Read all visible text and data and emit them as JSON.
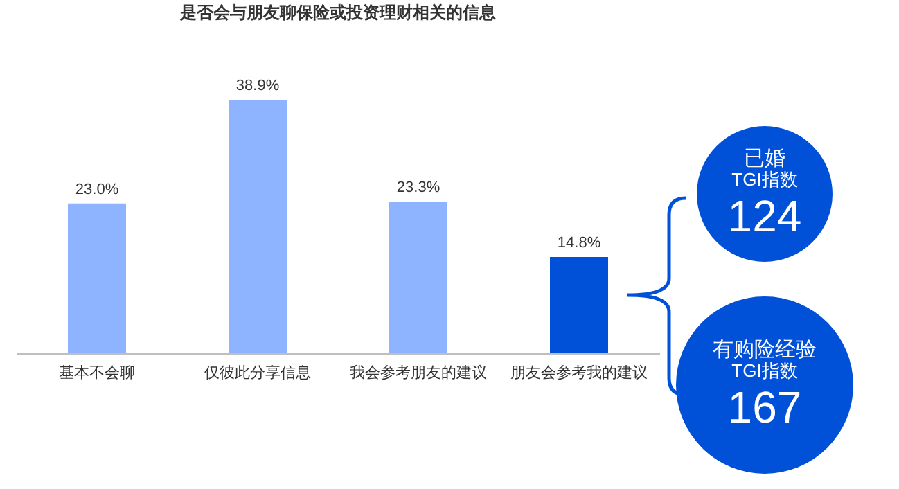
{
  "chart_data": {
    "type": "bar",
    "title": "是否会与朋友聊保险或投资理财相关的信息",
    "categories": [
      "基本不会聊",
      "仅彼此分享信息",
      "我会参考朋友的建议",
      "朋友会参考我的建议"
    ],
    "values": [
      23.0,
      38.9,
      23.3,
      14.8
    ],
    "colors": [
      "#8fb4ff",
      "#8fb4ff",
      "#8fb4ff",
      "#0050d8"
    ],
    "value_labels": [
      "23.0%",
      "38.9%",
      "23.3%",
      "14.8%"
    ],
    "tick_labels": "x",
    "grid": false,
    "annotations": [
      "已婚\nTGI指数\n124",
      "有购险经验\nTGI指数\n167"
    ]
  }
}
